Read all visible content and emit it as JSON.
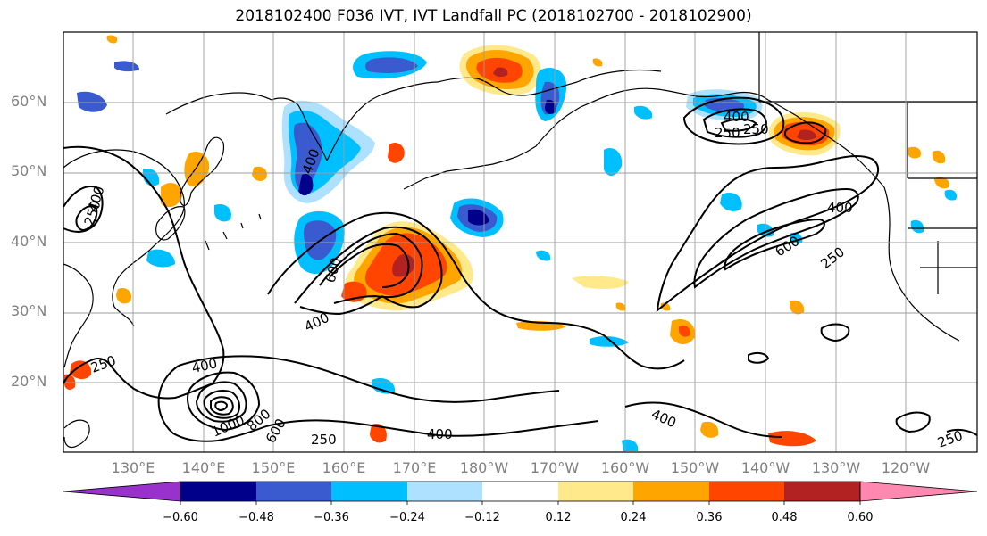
{
  "title": "2018102400 F036 IVT, IVT Landfall PC (2018102700 - 2018102900)",
  "map": {
    "lat_labels": [
      "60°N",
      "50°N",
      "40°N",
      "30°N",
      "20°N"
    ],
    "lon_labels": [
      "130°E",
      "140°E",
      "150°E",
      "160°E",
      "170°E",
      "180°W",
      "170°W",
      "160°W",
      "150°W",
      "140°W",
      "130°W",
      "120°W"
    ],
    "contour_labels": [
      "250",
      "400",
      "400",
      "250",
      "400",
      "600",
      "250",
      "400",
      "400",
      "1000",
      "800",
      "600",
      "250",
      "400",
      "250",
      "400",
      "600",
      "250",
      "250",
      "400"
    ],
    "contour_levels": [
      250,
      400,
      600,
      800,
      1000
    ],
    "line_color": "#000000",
    "grid_color": "#9e9e9e",
    "coast_color": "#000000"
  },
  "colorbar": {
    "ticks": [
      "−0.60",
      "−0.48",
      "−0.36",
      "−0.24",
      "−0.12",
      "0.12",
      "0.24",
      "0.36",
      "0.48",
      "0.60"
    ],
    "colors": [
      "#9932cc",
      "#00008b",
      "#3a5bcf",
      "#00bfff",
      "#aee1ff",
      "#ffffff",
      "#ffe98a",
      "#ffa500",
      "#ff4500",
      "#b22222",
      "#ff88b0"
    ]
  }
}
